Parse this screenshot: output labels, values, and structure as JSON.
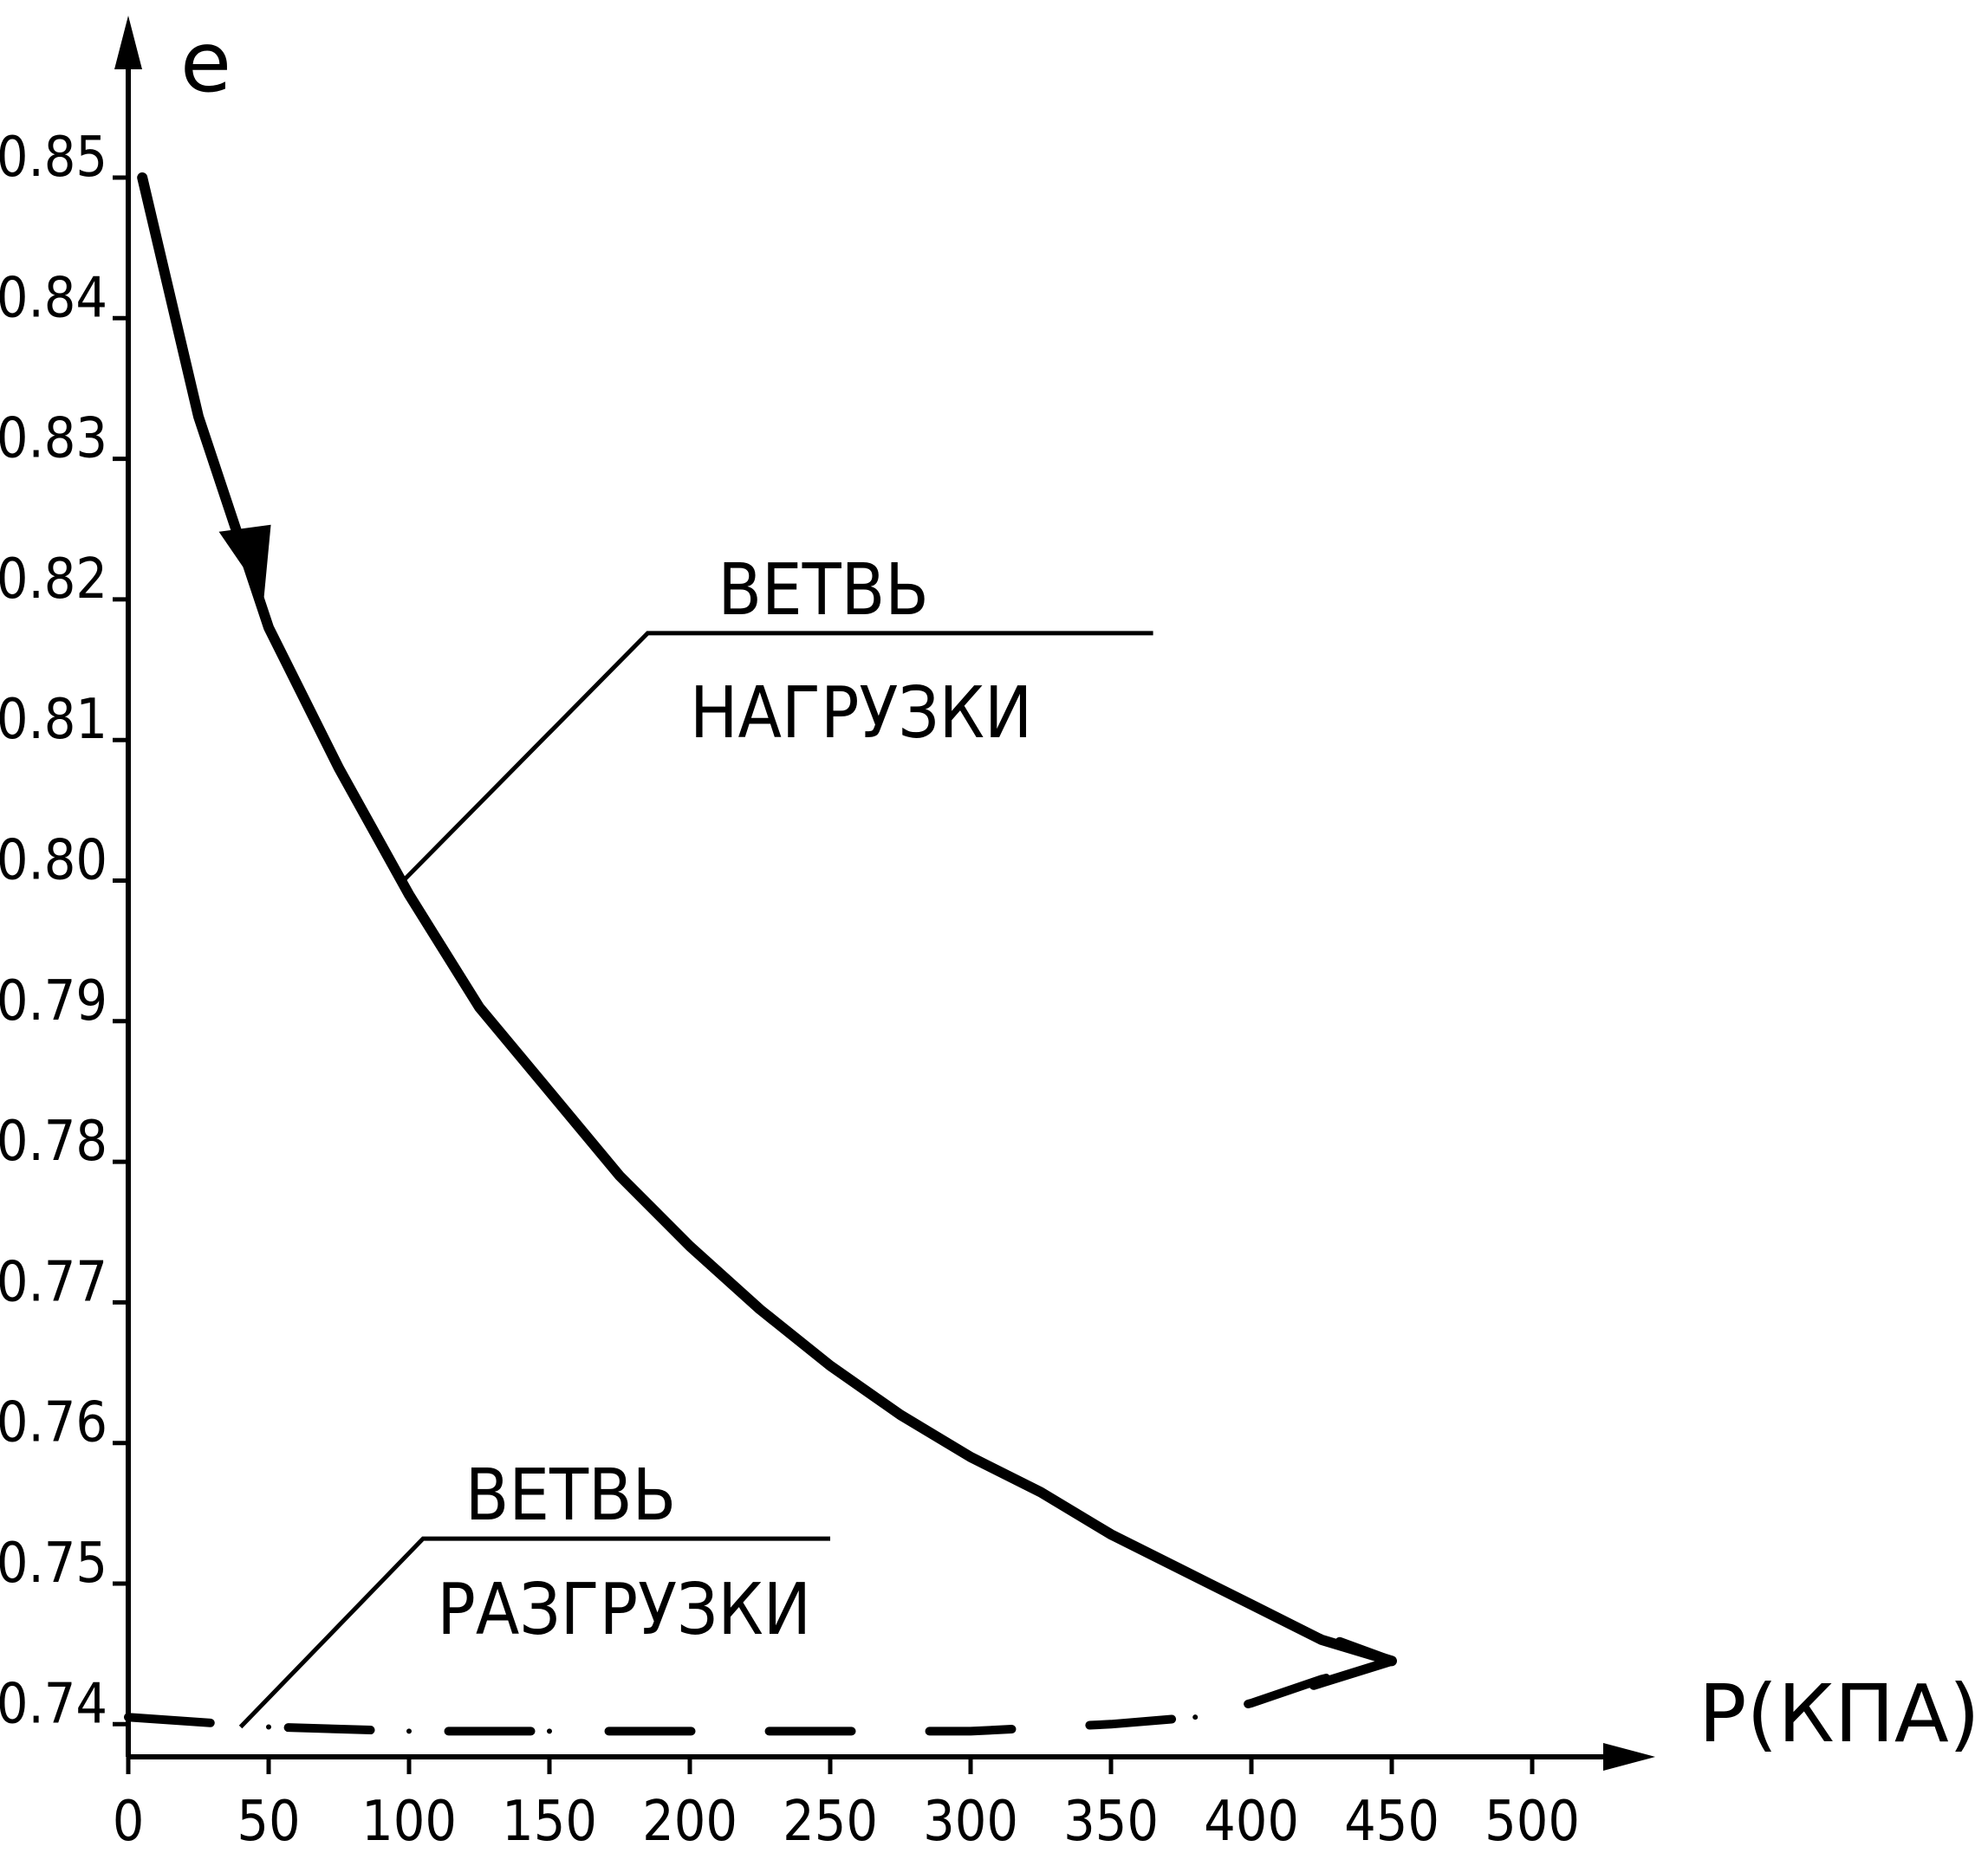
{
  "chart_data": {
    "type": "line",
    "title": "",
    "xlabel": "P(КПА)",
    "ylabel": "e",
    "xlim": [
      0,
      520
    ],
    "ylim": [
      0.733,
      0.862
    ],
    "x_ticks": [
      "0",
      "50",
      "100",
      "150",
      "200",
      "250",
      "300",
      "350",
      "400",
      "450",
      "500"
    ],
    "y_ticks": [
      "0.85",
      "0.84",
      "0.83",
      "0.82",
      "0.81",
      "0.80",
      "0.79",
      "0.78",
      "0.77",
      "0.76",
      "0.75",
      "0.74"
    ],
    "grid": false,
    "series": [
      {
        "style": "solid",
        "x": [
          5,
          25,
          50,
          75,
          100,
          125,
          150,
          175,
          200,
          225,
          250,
          275,
          300,
          325,
          350,
          375,
          400,
          425,
          450
        ],
        "y": [
          0.85,
          0.833,
          0.818,
          0.808,
          0.799,
          0.791,
          0.785,
          0.779,
          0.774,
          0.7695,
          0.7655,
          0.762,
          0.759,
          0.7565,
          0.7535,
          0.751,
          0.7485,
          0.746,
          0.7445
        ]
      },
      {
        "style": "dashed",
        "x": [
          0,
          50,
          100,
          150,
          200,
          250,
          300,
          350,
          380,
          400,
          425,
          450
        ],
        "y": [
          0.7405,
          0.7398,
          0.7395,
          0.7395,
          0.7395,
          0.7395,
          0.7395,
          0.74,
          0.7405,
          0.7415,
          0.7432,
          0.7445
        ]
      }
    ],
    "annotations": [
      {
        "line1": "ВЕТВЬ",
        "line2": "НАГРУЗКИ"
      },
      {
        "line1": "ВЕТВЬ",
        "line2": "РАЗГРУЗКИ"
      }
    ]
  }
}
